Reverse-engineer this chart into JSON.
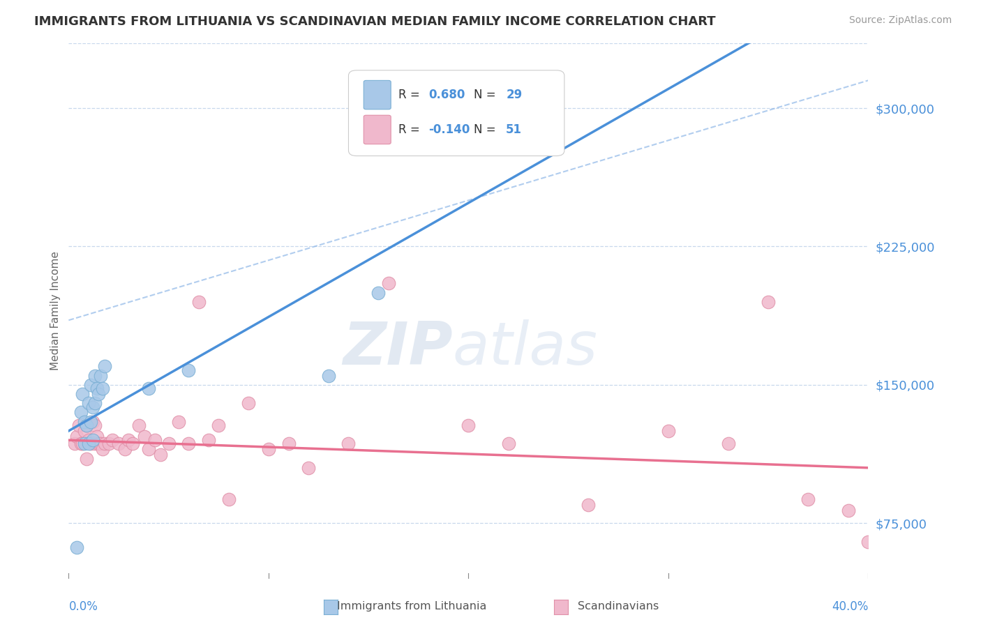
{
  "title": "IMMIGRANTS FROM LITHUANIA VS SCANDINAVIAN MEDIAN FAMILY INCOME CORRELATION CHART",
  "source": "Source: ZipAtlas.com",
  "ylabel": "Median Family Income",
  "y_ticks": [
    75000,
    150000,
    225000,
    300000
  ],
  "y_tick_labels": [
    "$75,000",
    "$150,000",
    "$225,000",
    "$300,000"
  ],
  "x_range": [
    0.0,
    0.4
  ],
  "y_range": [
    45000,
    335000
  ],
  "blue_scatter_x": [
    0.004,
    0.006,
    0.007,
    0.008,
    0.008,
    0.009,
    0.01,
    0.01,
    0.011,
    0.011,
    0.012,
    0.012,
    0.013,
    0.013,
    0.014,
    0.015,
    0.016,
    0.017,
    0.018,
    0.04,
    0.06,
    0.13,
    0.155
  ],
  "blue_scatter_y": [
    62000,
    135000,
    145000,
    118000,
    130000,
    128000,
    118000,
    140000,
    130000,
    150000,
    120000,
    138000,
    140000,
    155000,
    148000,
    145000,
    155000,
    148000,
    160000,
    148000,
    158000,
    155000,
    200000
  ],
  "pink_scatter_x": [
    0.003,
    0.004,
    0.005,
    0.006,
    0.007,
    0.008,
    0.009,
    0.009,
    0.01,
    0.011,
    0.012,
    0.013,
    0.013,
    0.014,
    0.015,
    0.016,
    0.017,
    0.018,
    0.02,
    0.022,
    0.025,
    0.028,
    0.03,
    0.032,
    0.035,
    0.038,
    0.04,
    0.043,
    0.046,
    0.05,
    0.055,
    0.06,
    0.065,
    0.07,
    0.075,
    0.08,
    0.09,
    0.1,
    0.11,
    0.12,
    0.14,
    0.16,
    0.2,
    0.22,
    0.26,
    0.3,
    0.33,
    0.35,
    0.37,
    0.39,
    0.4
  ],
  "pink_scatter_y": [
    118000,
    122000,
    128000,
    118000,
    118000,
    125000,
    110000,
    128000,
    120000,
    118000,
    130000,
    118000,
    128000,
    122000,
    118000,
    118000,
    115000,
    118000,
    118000,
    120000,
    118000,
    115000,
    120000,
    118000,
    128000,
    122000,
    115000,
    120000,
    112000,
    118000,
    130000,
    118000,
    195000,
    120000,
    128000,
    88000,
    140000,
    115000,
    118000,
    105000,
    118000,
    205000,
    128000,
    118000,
    85000,
    125000,
    118000,
    195000,
    88000,
    82000,
    65000
  ],
  "blue_line_color": "#4a90d9",
  "pink_line_color": "#e87090",
  "dashed_line_color": "#90b8e8",
  "scatter_blue_color": "#a8c8e8",
  "scatter_pink_color": "#f0b8cc",
  "scatter_blue_edge": "#7aafd4",
  "scatter_pink_edge": "#e090a8",
  "background_color": "#ffffff",
  "grid_color": "#c8d8ec",
  "title_color": "#333333",
  "axis_tick_color": "#4a90d9",
  "legend_box_color": "#ffffff",
  "legend_border_color": "#cccccc"
}
